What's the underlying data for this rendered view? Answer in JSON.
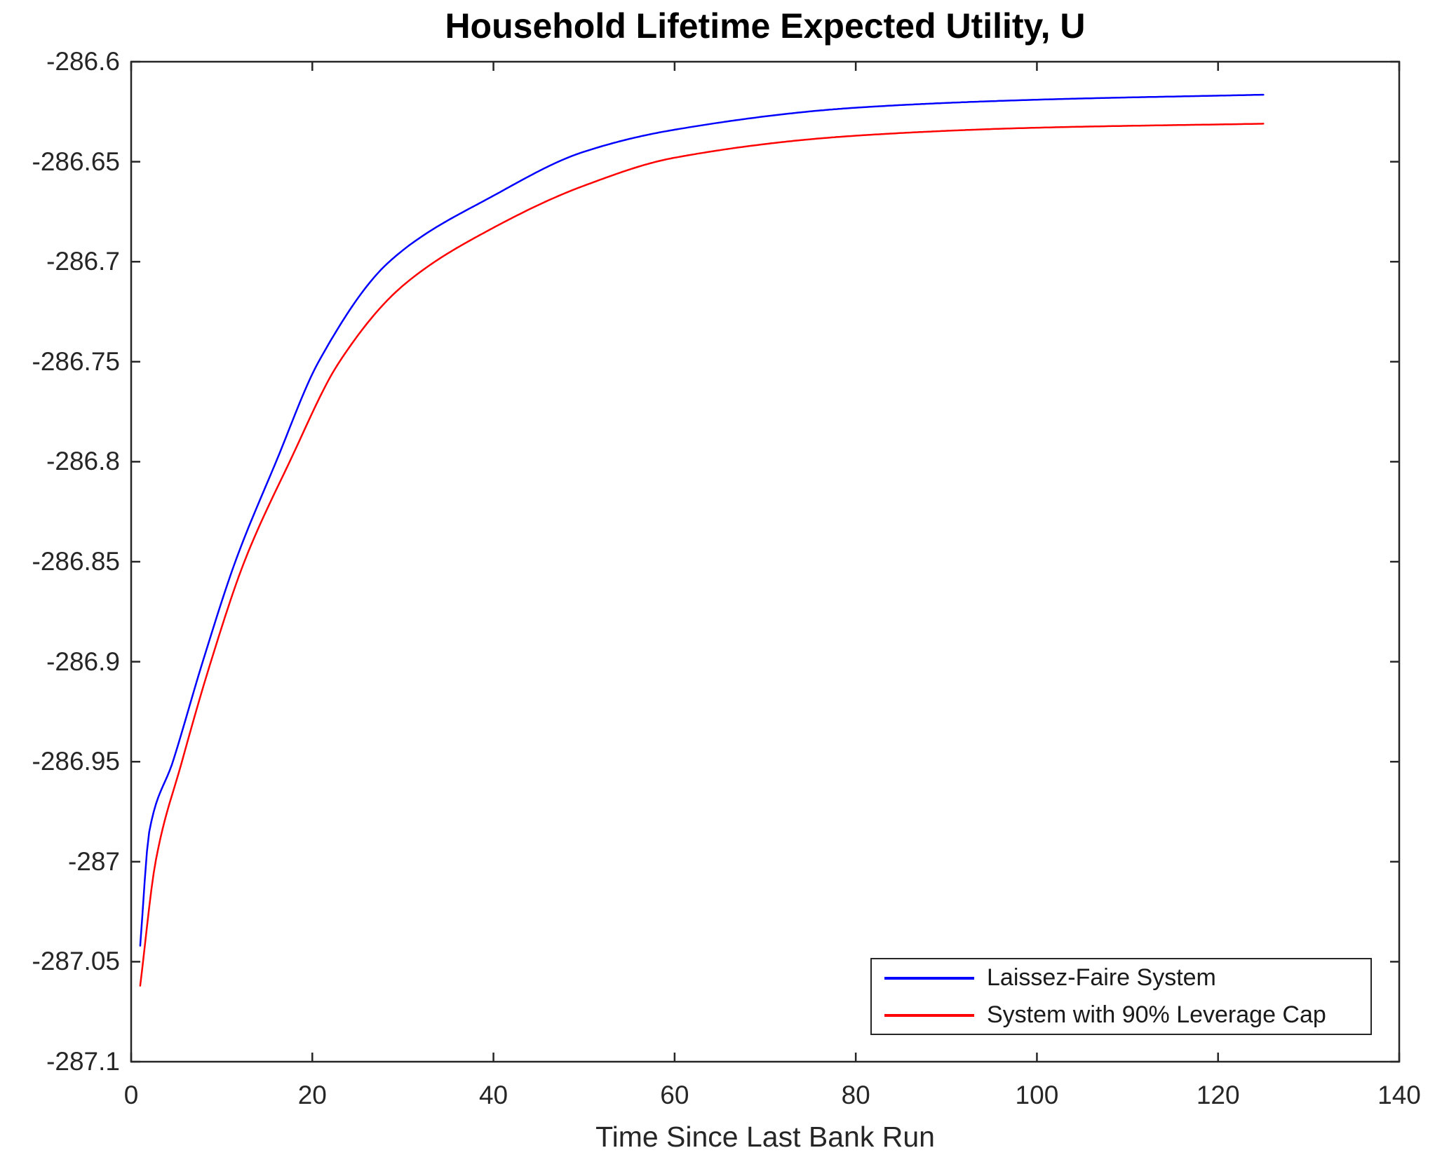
{
  "chart_data": {
    "type": "line",
    "title": "Household Lifetime Expected Utility, U",
    "xlabel": "Time Since Last Bank Run",
    "ylabel": "",
    "xlim": [
      0,
      140
    ],
    "ylim": [
      -287.1,
      -286.6
    ],
    "grid": false,
    "axis_color": "#262626",
    "background_color": "#ffffff",
    "xticks": [
      0,
      20,
      40,
      60,
      80,
      100,
      120,
      140
    ],
    "xtick_labels": [
      "0",
      "20",
      "40",
      "60",
      "80",
      "100",
      "120",
      "140"
    ],
    "yticks": [
      -287.1,
      -287.05,
      -287,
      -286.95,
      -286.9,
      -286.85,
      -286.8,
      -286.75,
      -286.7,
      -286.65,
      -286.6
    ],
    "ytick_labels": [
      "-287.1",
      "-287.05",
      "-287",
      "-286.95",
      "-286.9",
      "-286.85",
      "-286.8",
      "-286.75",
      "-286.7",
      "-286.65",
      "-286.6"
    ],
    "legend_position": "bottom-right",
    "series": [
      {
        "name": "Laissez-Faire System",
        "color": "#0000ff",
        "x": [
          1,
          2,
          4.6,
          7.9,
          11.5,
          16,
          20.7,
          28.5,
          40,
          50,
          60,
          80,
          100,
          125
        ],
        "y": [
          -287.042,
          -286.985,
          -286.95,
          -286.9,
          -286.85,
          -286.8,
          -286.75,
          -286.7,
          -286.667,
          -286.645,
          -286.634,
          -286.623,
          -286.619,
          -286.6165
        ]
      },
      {
        "name": "System with 90% Leverage Cap",
        "color": "#ff0000",
        "x": [
          1,
          2.7,
          5.6,
          8.8,
          12.5,
          17.5,
          23,
          30,
          40,
          50,
          60,
          80,
          100,
          125
        ],
        "y": [
          -287.062,
          -287.0,
          -286.95,
          -286.9,
          -286.85,
          -286.8,
          -286.75,
          -286.712,
          -286.683,
          -286.662,
          -286.648,
          -286.637,
          -286.633,
          -286.631
        ]
      }
    ]
  }
}
